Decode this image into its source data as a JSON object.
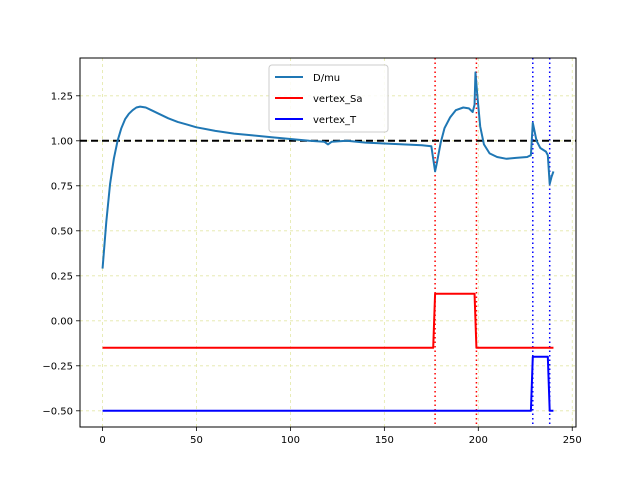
{
  "chart_data": {
    "type": "line",
    "title": "",
    "xlabel": "",
    "ylabel": "",
    "xlim": [
      -12,
      252
    ],
    "ylim": [
      -0.59,
      1.46
    ],
    "xticks": [
      0,
      50,
      100,
      150,
      200,
      250
    ],
    "xtick_labels": [
      "0",
      "50",
      "100",
      "150",
      "200",
      "250"
    ],
    "yticks": [
      -0.5,
      -0.25,
      0.0,
      0.25,
      0.5,
      0.75,
      1.0,
      1.25
    ],
    "ytick_labels": [
      "−0.50",
      "−0.25",
      "0.00",
      "0.25",
      "0.50",
      "0.75",
      "1.00",
      "1.25"
    ],
    "grid": true,
    "grid_color": "#e3e8a6",
    "legend_position": "top-center",
    "series": [
      {
        "name": "D/mu",
        "color": "#1f77b4",
        "points": [
          [
            0,
            0.29
          ],
          [
            2,
            0.55
          ],
          [
            4,
            0.76
          ],
          [
            6,
            0.9
          ],
          [
            8,
            1.0
          ],
          [
            10,
            1.07
          ],
          [
            12,
            1.12
          ],
          [
            14,
            1.15
          ],
          [
            16,
            1.17
          ],
          [
            18,
            1.185
          ],
          [
            20,
            1.19
          ],
          [
            23,
            1.185
          ],
          [
            26,
            1.17
          ],
          [
            30,
            1.15
          ],
          [
            35,
            1.125
          ],
          [
            40,
            1.105
          ],
          [
            45,
            1.09
          ],
          [
            50,
            1.075
          ],
          [
            60,
            1.055
          ],
          [
            70,
            1.04
          ],
          [
            80,
            1.03
          ],
          [
            90,
            1.02
          ],
          [
            100,
            1.01
          ],
          [
            110,
            1.0
          ],
          [
            118,
            0.995
          ],
          [
            120,
            0.98
          ],
          [
            122,
            0.995
          ],
          [
            130,
            1.0
          ],
          [
            140,
            0.99
          ],
          [
            150,
            0.985
          ],
          [
            160,
            0.98
          ],
          [
            170,
            0.975
          ],
          [
            175,
            0.97
          ],
          [
            176,
            0.9
          ],
          [
            177,
            0.83
          ],
          [
            178,
            0.88
          ],
          [
            180,
            0.99
          ],
          [
            182,
            1.07
          ],
          [
            185,
            1.13
          ],
          [
            188,
            1.17
          ],
          [
            192,
            1.185
          ],
          [
            195,
            1.18
          ],
          [
            197,
            1.16
          ],
          [
            198,
            1.2
          ],
          [
            198.5,
            1.38
          ],
          [
            199.5,
            1.25
          ],
          [
            201,
            1.08
          ],
          [
            203,
            0.98
          ],
          [
            206,
            0.93
          ],
          [
            210,
            0.91
          ],
          [
            215,
            0.9
          ],
          [
            220,
            0.905
          ],
          [
            226,
            0.91
          ],
          [
            228,
            0.92
          ],
          [
            229,
            1.1
          ],
          [
            231,
            1.0
          ],
          [
            233,
            0.96
          ],
          [
            236,
            0.94
          ],
          [
            237,
            0.92
          ],
          [
            238,
            0.76
          ],
          [
            239,
            0.8
          ],
          [
            240,
            0.83
          ]
        ]
      },
      {
        "name": "vertex_Sa",
        "color": "#ff0000",
        "points": [
          [
            0,
            -0.15
          ],
          [
            176,
            -0.15
          ],
          [
            177,
            0.15
          ],
          [
            198,
            0.15
          ],
          [
            199,
            -0.15
          ],
          [
            240,
            -0.15
          ]
        ]
      },
      {
        "name": "vertex_T",
        "color": "#0000ff",
        "points": [
          [
            0,
            -0.5
          ],
          [
            228,
            -0.5
          ],
          [
            229,
            -0.2
          ],
          [
            237,
            -0.2
          ],
          [
            238,
            -0.5
          ],
          [
            240,
            -0.5
          ]
        ]
      }
    ],
    "hlines": [
      {
        "y": 1.0,
        "color": "#000000",
        "style": "dashed"
      }
    ],
    "vlines": [
      {
        "x": 177,
        "color": "#ff0000",
        "style": "dotted"
      },
      {
        "x": 199,
        "color": "#ff0000",
        "style": "dotted"
      },
      {
        "x": 229,
        "color": "#0000ff",
        "style": "dotted"
      },
      {
        "x": 238,
        "color": "#0000ff",
        "style": "dotted"
      }
    ]
  }
}
